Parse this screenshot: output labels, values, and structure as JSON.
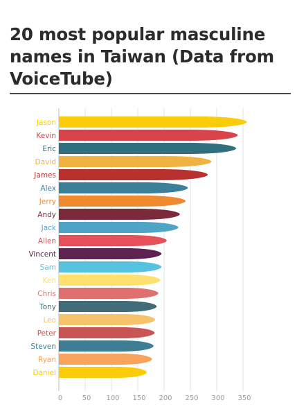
{
  "header": {
    "title": "20 most popular masculine names in Taiwan (Data from VoiceTube)"
  },
  "chart_data": {
    "type": "bar",
    "orientation": "horizontal",
    "title": "20 most popular masculine names in Taiwan (Data from VoiceTube)",
    "xlabel": "",
    "ylabel": "",
    "xlim": [
      0,
      360
    ],
    "x_ticks": [
      "0",
      "50",
      "100",
      "150",
      "200",
      "250",
      "300",
      "350"
    ],
    "grid": true,
    "categories": [
      "Jason",
      "Kevin",
      "Eric",
      "David",
      "James",
      "Alex",
      "Jerry",
      "Andy",
      "Jack",
      "Allen",
      "Vincent",
      "Sam",
      "Ken",
      "Chris",
      "Tony",
      "Leo",
      "Peter",
      "Steven",
      "Ryan",
      "Daniel"
    ],
    "values": [
      357,
      340,
      337,
      290,
      283,
      245,
      241,
      230,
      227,
      205,
      195,
      195,
      193,
      189,
      186,
      183,
      182,
      180,
      177,
      167
    ],
    "colors": [
      "#fbcc0a",
      "#d9444a",
      "#2f6f7f",
      "#f0b240",
      "#b8312e",
      "#3b7f99",
      "#f08a2f",
      "#7a2a3a",
      "#4fa3c4",
      "#e6505a",
      "#5e2250",
      "#55c3e0",
      "#fde06e",
      "#e07070",
      "#3f6c78",
      "#f5c36a",
      "#c95454",
      "#3e7e95",
      "#f7a35c",
      "#fbcc0a"
    ]
  }
}
